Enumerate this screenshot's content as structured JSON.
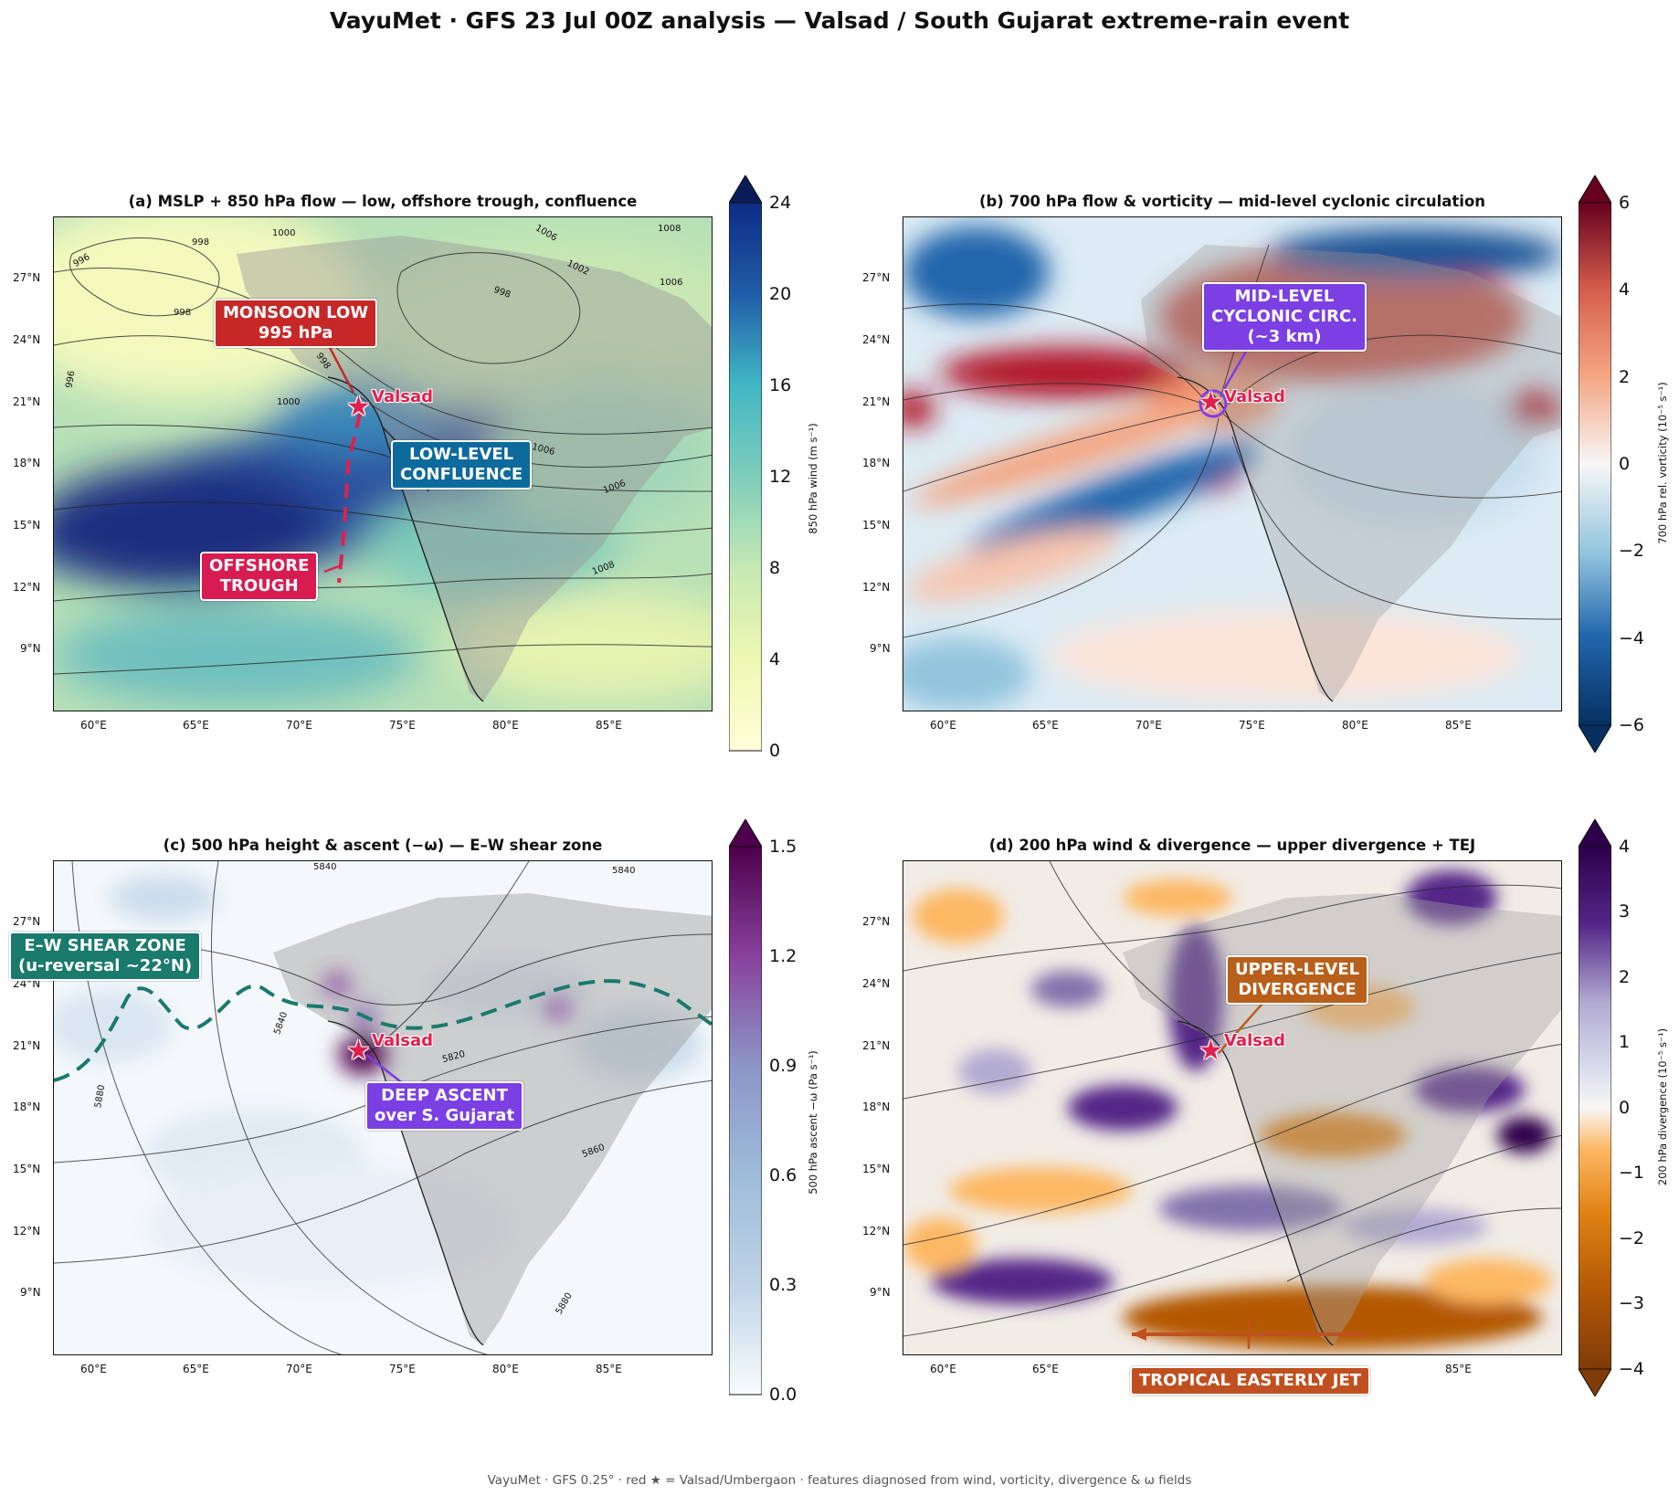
{
  "title": "VayuMet · GFS 23 Jul 00Z analysis — Valsad / South Gujarat extreme-rain event",
  "footer": "VayuMet · GFS 0.25° · red ★ = Valsad/Umbergaon · features diagnosed from wind, vorticity, divergence & ω fields",
  "axes": {
    "lon_ticks": [
      "60°E",
      "65°E",
      "70°E",
      "75°E",
      "80°E",
      "85°E"
    ],
    "lat_ticks": [
      "27°N",
      "24°N",
      "21°N",
      "18°N",
      "15°N",
      "12°N",
      "9°N"
    ]
  },
  "station": {
    "label": "Valsad",
    "symbol": "★",
    "lon": 72.9,
    "lat": 20.6,
    "color": "#e0204e"
  },
  "colors": {
    "brand_red": "#e0204e"
  },
  "panels": [
    {
      "title": "(a) MSLP + 850 hPa flow — low, offshore trough, confluence",
      "colorbar": {
        "label": "850 hPa wind (m s⁻¹)",
        "ticks": [
          "24",
          "20",
          "16",
          "12",
          "8",
          "4",
          "0"
        ],
        "range": [
          0,
          24
        ],
        "palette": "YlGnBu",
        "extend": "max"
      },
      "contours": [
        "1008",
        "1006",
        "1002",
        "998",
        "1000",
        "998",
        "996",
        "998",
        "998",
        "1000",
        "996",
        "1006",
        "1006",
        "1008",
        "1006"
      ],
      "annotations": [
        {
          "text": "MONSOON LOW\n995 hPa",
          "color": "#c62828"
        },
        {
          "text": "LOW-LEVEL\nCONFLUENCE",
          "color": "#0d6a9c"
        },
        {
          "text": "OFFSHORE\nTROUGH",
          "color": "#d81b50"
        }
      ]
    },
    {
      "title": "(b) 700 hPa flow & vorticity — mid-level cyclonic circulation",
      "colorbar": {
        "label": "700 hPa rel. vorticity (10⁻⁵ s⁻¹)",
        "ticks": [
          "6",
          "4",
          "2",
          "0",
          "−2",
          "−4",
          "−6"
        ],
        "range": [
          -6,
          6
        ],
        "palette": "RdBu_r",
        "extend": "both"
      },
      "annotations": [
        {
          "text": "MID-LEVEL\nCYCLONIC CIRC.\n(~3 km)",
          "color": "#7b3fe4"
        }
      ]
    },
    {
      "title": "(c) 500 hPa height & ascent (−ω) — E–W shear zone",
      "colorbar": {
        "label": "500 hPa ascent −ω (Pa s⁻¹)",
        "ticks": [
          "1.5",
          "1.2",
          "0.9",
          "0.6",
          "0.3",
          "0.0"
        ],
        "range": [
          0,
          1.5
        ],
        "palette": "BuPu",
        "extend": "max"
      },
      "contours": [
        "5840",
        "5840",
        "5840",
        "5880",
        "5820",
        "5860",
        "5880"
      ],
      "annotations": [
        {
          "text": "E–W SHEAR ZONE\n(u-reversal ~22°N)",
          "color": "#1a7a6c"
        },
        {
          "text": "DEEP ASCENT\nover S. Gujarat",
          "color": "#7b3fe4"
        }
      ]
    },
    {
      "title": "(d) 200 hPa wind & divergence — upper divergence + TEJ",
      "colorbar": {
        "label": "200 hPa divergence (10⁻⁵ s⁻¹)",
        "ticks": [
          "4",
          "3",
          "2",
          "1",
          "0",
          "−1",
          "−2",
          "−3",
          "−4"
        ],
        "range": [
          -4,
          4
        ],
        "palette": "PuOr",
        "extend": "both"
      },
      "annotations": [
        {
          "text": "UPPER-LEVEL\nDIVERGENCE",
          "color": "#b8601b"
        },
        {
          "text": "TROPICAL EASTERLY JET",
          "color": "#c0501f"
        }
      ]
    }
  ]
}
